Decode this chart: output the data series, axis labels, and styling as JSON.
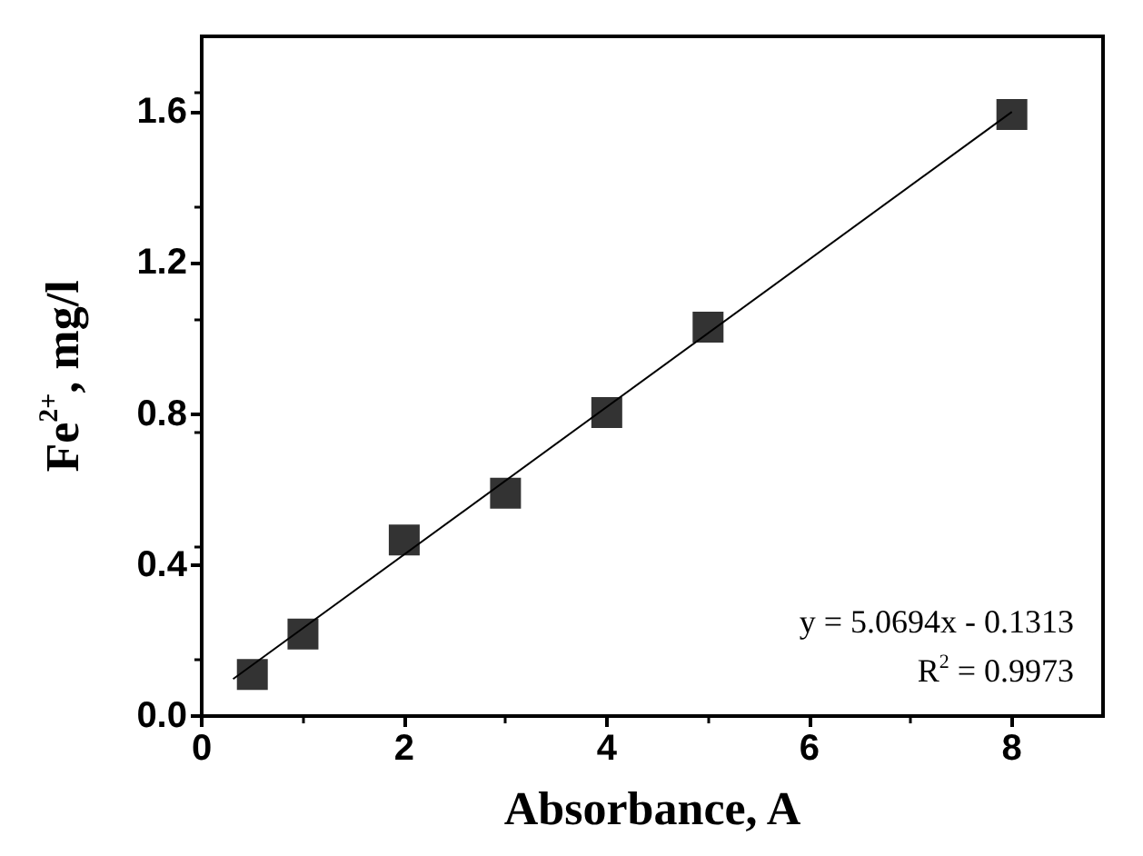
{
  "chart_data": {
    "type": "scatter",
    "xlabel": "Absorbance, A",
    "ylabel": "Fe$^{2+}$, mg/l",
    "x": [
      0.5,
      1,
      2,
      3,
      4,
      5,
      8
    ],
    "series": [
      {
        "color": "#000000",
        "values": [
          0.11,
          0.217,
          0.466,
          0.59,
          0.804,
          1.03,
          1.593
        ],
        "marker": "square"
      },
      {
        "type": "line",
        "color": "#000000",
        "x": [
          0.31,
          8
        ],
        "values": [
          0.098,
          1.6
        ],
        "line_style": "solid",
        "marker": "none"
      }
    ],
    "xlim": [
      0,
      8.9
    ],
    "xticks": [
      0,
      2,
      4,
      6,
      8
    ],
    "ylim": [
      0,
      1.8
    ],
    "yticks": [
      {
        "value": 0,
        "label": "0.0"
      },
      0.4,
      0.8,
      1.2,
      1.6
    ],
    "grid": false,
    "annotations": [
      "y = 5.0694x - 0.1313",
      "R$^{2}$ = 0.9973"
    ]
  }
}
